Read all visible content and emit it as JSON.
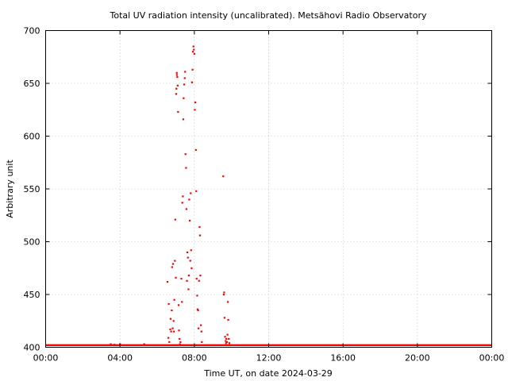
{
  "chart_data": {
    "type": "scatter",
    "title": "Total UV radiation intensity (uncalibrated). Metsähovi Radio Observatory",
    "xlabel": "Time UT, on date 2024-03-29",
    "ylabel": "Arbitrary unit",
    "xlim": [
      0,
      24
    ],
    "ylim": [
      400,
      700
    ],
    "grid": true,
    "marker_color": "#ff0000",
    "x_ticks": [
      {
        "value": 0,
        "label": "00:00"
      },
      {
        "value": 4,
        "label": "04:00"
      },
      {
        "value": 8,
        "label": "08:00"
      },
      {
        "value": 12,
        "label": "12:00"
      },
      {
        "value": 16,
        "label": "16:00"
      },
      {
        "value": 20,
        "label": "20:00"
      },
      {
        "value": 24,
        "label": "00:00"
      }
    ],
    "y_ticks": [
      {
        "value": 400,
        "label": "400"
      },
      {
        "value": 450,
        "label": "450"
      },
      {
        "value": 500,
        "label": "500"
      },
      {
        "value": 550,
        "label": "550"
      },
      {
        "value": 600,
        "label": "600"
      },
      {
        "value": 650,
        "label": "650"
      },
      {
        "value": 700,
        "label": "700"
      }
    ],
    "series": [
      {
        "baseline": {
          "x_start": 0,
          "x_end": 24,
          "y": 402
        },
        "points": [
          [
            3.5,
            403
          ],
          [
            3.7,
            402.5
          ],
          [
            4.0,
            403
          ],
          [
            5.3,
            403
          ],
          [
            6.55,
            462
          ],
          [
            6.6,
            409
          ],
          [
            6.62,
            441
          ],
          [
            6.65,
            405
          ],
          [
            6.7,
            417
          ],
          [
            6.72,
            427
          ],
          [
            6.75,
            415
          ],
          [
            6.78,
            435
          ],
          [
            6.8,
            476
          ],
          [
            6.83,
            418
          ],
          [
            6.85,
            479
          ],
          [
            6.88,
            425
          ],
          [
            6.9,
            415
          ],
          [
            6.92,
            445
          ],
          [
            6.95,
            482
          ],
          [
            6.97,
            521
          ],
          [
            7.0,
            466
          ],
          [
            7.02,
            640
          ],
          [
            7.03,
            645
          ],
          [
            7.05,
            660
          ],
          [
            7.06,
            658
          ],
          [
            7.08,
            656
          ],
          [
            7.1,
            648
          ],
          [
            7.12,
            623
          ],
          [
            7.15,
            440
          ],
          [
            7.17,
            416
          ],
          [
            7.2,
            408
          ],
          [
            7.22,
            403
          ],
          [
            7.25,
            405
          ],
          [
            7.3,
            465
          ],
          [
            7.33,
            443
          ],
          [
            7.35,
            537
          ],
          [
            7.38,
            543
          ],
          [
            7.4,
            616
          ],
          [
            7.42,
            636
          ],
          [
            7.45,
            649
          ],
          [
            7.48,
            655
          ],
          [
            7.5,
            661
          ],
          [
            7.52,
            583
          ],
          [
            7.55,
            570
          ],
          [
            7.57,
            531
          ],
          [
            7.6,
            463
          ],
          [
            7.62,
            490
          ],
          [
            7.65,
            485
          ],
          [
            7.68,
            455
          ],
          [
            7.7,
            468
          ],
          [
            7.72,
            540
          ],
          [
            7.75,
            520
          ],
          [
            7.78,
            482
          ],
          [
            7.8,
            546
          ],
          [
            7.82,
            492
          ],
          [
            7.85,
            475
          ],
          [
            7.87,
            651
          ],
          [
            7.9,
            663
          ],
          [
            7.92,
            680
          ],
          [
            7.95,
            685
          ],
          [
            7.97,
            682
          ],
          [
            8.0,
            678
          ],
          [
            8.02,
            625
          ],
          [
            8.05,
            632
          ],
          [
            8.08,
            587
          ],
          [
            8.1,
            548
          ],
          [
            8.12,
            465
          ],
          [
            8.15,
            449
          ],
          [
            8.17,
            436
          ],
          [
            8.2,
            435
          ],
          [
            8.22,
            418
          ],
          [
            8.25,
            463
          ],
          [
            8.28,
            514
          ],
          [
            8.3,
            506
          ],
          [
            8.32,
            468
          ],
          [
            8.35,
            421
          ],
          [
            8.38,
            415
          ],
          [
            8.4,
            405
          ],
          [
            9.55,
            562
          ],
          [
            9.58,
            450
          ],
          [
            9.6,
            452
          ],
          [
            9.62,
            428
          ],
          [
            9.65,
            410
          ],
          [
            9.68,
            406
          ],
          [
            9.7,
            404
          ],
          [
            9.72,
            408
          ],
          [
            9.75,
            405
          ],
          [
            9.78,
            412
          ],
          [
            9.8,
            443
          ],
          [
            9.82,
            426
          ],
          [
            9.85,
            408
          ],
          [
            9.88,
            404
          ]
        ]
      }
    ]
  }
}
